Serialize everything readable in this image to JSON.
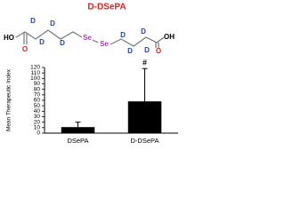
{
  "chart_data": {
    "type": "bar",
    "title": "D-DSePA",
    "categories": [
      "DSePA",
      "D-DSePA"
    ],
    "values": [
      11,
      58
    ],
    "errors": [
      9,
      60
    ],
    "color": "#000000",
    "ylabel": "Mean Therapeutic Index",
    "ylim": [
      0,
      120
    ],
    "yticks": [
      0,
      10,
      20,
      30,
      40,
      50,
      60,
      70,
      80,
      90,
      100,
      110,
      120
    ],
    "annotations": [
      {
        "category": "D-DSePA",
        "text": "#"
      }
    ]
  },
  "structure": {
    "atoms": [
      "HO",
      "O",
      "D",
      "D",
      "D",
      "D",
      "Se",
      "Se",
      "D",
      "D",
      "D",
      "D",
      "OH",
      "O"
    ]
  }
}
